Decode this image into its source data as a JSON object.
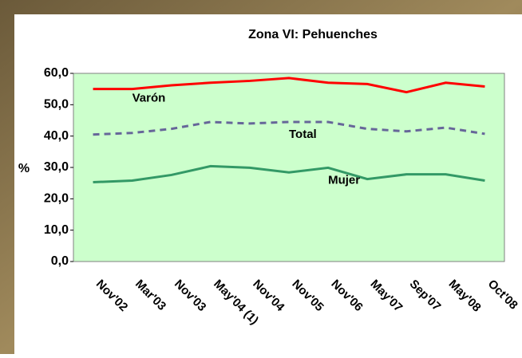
{
  "chart_data": {
    "type": "line",
    "title": "Zona VI: Pehuenches",
    "y_label": "%",
    "categories": [
      "Nov'02",
      "Mar'03",
      "Nov'03",
      "May'04 (1)",
      "Nov'04",
      "Nov'05",
      "Nov'06",
      "May'07",
      "Sep'07",
      "May'08",
      "Oct'08"
    ],
    "series": [
      {
        "name": "Varón",
        "color": "#ff0000",
        "dashed": false,
        "values": [
          55.0,
          55.0,
          56.2,
          57.0,
          57.6,
          58.5,
          57.0,
          56.6,
          54.0,
          57.0,
          55.8
        ]
      },
      {
        "name": "Total",
        "color": "#666699",
        "dashed": true,
        "values": [
          40.5,
          41.0,
          42.3,
          44.5,
          44.0,
          44.5,
          44.5,
          42.3,
          41.5,
          42.7,
          40.7
        ]
      },
      {
        "name": "Mujer",
        "color": "#339966",
        "dashed": false,
        "values": [
          25.3,
          25.8,
          27.6,
          30.4,
          29.9,
          28.4,
          29.9,
          26.3,
          27.8,
          27.8,
          25.8
        ]
      }
    ],
    "ylim": [
      0,
      60
    ],
    "yticks": [
      {
        "value": 0,
        "label": "0,0"
      },
      {
        "value": 10,
        "label": "10,0"
      },
      {
        "value": 20,
        "label": "20,0"
      },
      {
        "value": 30,
        "label": "30,0"
      },
      {
        "value": 40,
        "label": "40,0"
      },
      {
        "value": 50,
        "label": "50,0"
      },
      {
        "value": 60,
        "label": "60,0"
      }
    ],
    "grid": false,
    "plot_background": "#ccffcc"
  }
}
